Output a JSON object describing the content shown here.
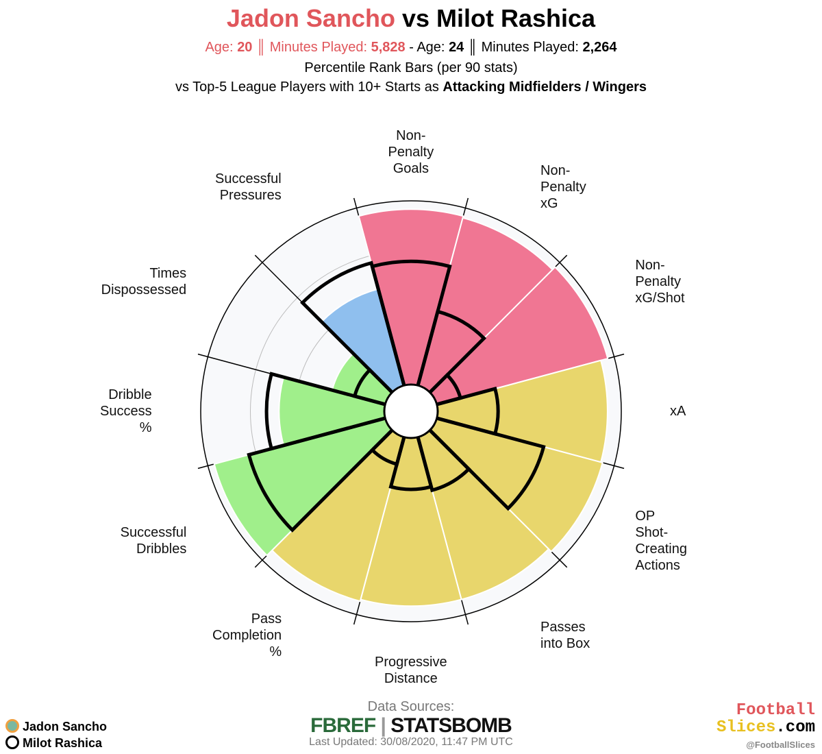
{
  "chart_data": {
    "type": "pizza",
    "title_connector": "vs",
    "info": [
      {
        "age_label": "Age:",
        "age": 20,
        "minutes_label": "Minutes Played:",
        "minutes": "5,828"
      },
      {
        "age_label": "Age:",
        "age": 24,
        "minutes_label": "Minutes Played:",
        "minutes": "2,264"
      }
    ],
    "separator": "║",
    "dash": "-",
    "subtitle": "Percentile Rank Bars (per 90 stats)",
    "comparison_prefix": "vs Top-5 League Players with 10+ Starts as",
    "comparison_group": "Attacking Midfielders / Wingers",
    "categories": [
      "Non-\nPenalty\nGoals",
      "Non-\nPenalty\nxG",
      "Non-\nPenalty\nxG/Shot",
      "xA",
      "OP\nShot-\nCreating\nActions",
      "Passes\ninto Box",
      "Progressive\nDistance",
      "Pass\nCompletion\n%",
      "Successful\nDribbles",
      "Dribble\nSuccess\n%",
      "Times\nDispossessed",
      "Successful\nPressures"
    ],
    "series": [
      {
        "name": "Jadon Sancho",
        "values": [
          98,
          97,
          99,
          95,
          96,
          94,
          94,
          95,
          99,
          59,
          31,
          56
        ],
        "colors": [
          "#f07693",
          "#f07693",
          "#f07693",
          "#e8d66c",
          "#e8d66c",
          "#e8d66c",
          "#e8d66c",
          "#e8d66c",
          "#a0ef8b",
          "#a0ef8b",
          "#a0ef8b",
          "#8fbfee"
        ]
      },
      {
        "name": "Milot Rashica",
        "values": [
          69,
          43,
          14,
          34,
          62,
          31,
          29,
          16,
          79,
          66,
          18,
          71
        ],
        "color": "#000000"
      }
    ],
    "rlim": [
      0,
      100
    ],
    "rticks": [
      25,
      50,
      75
    ],
    "grid": true,
    "sources_label": "Data Sources:",
    "source_1": "FBREF",
    "source_2": "STATSBOMB",
    "updated": "Last Updated: 30/08/2020, 11:47 PM UTC",
    "brand_1": "Football",
    "brand_2": "Slices",
    "brand_3": ".com",
    "handle": "@FootballSlices"
  }
}
